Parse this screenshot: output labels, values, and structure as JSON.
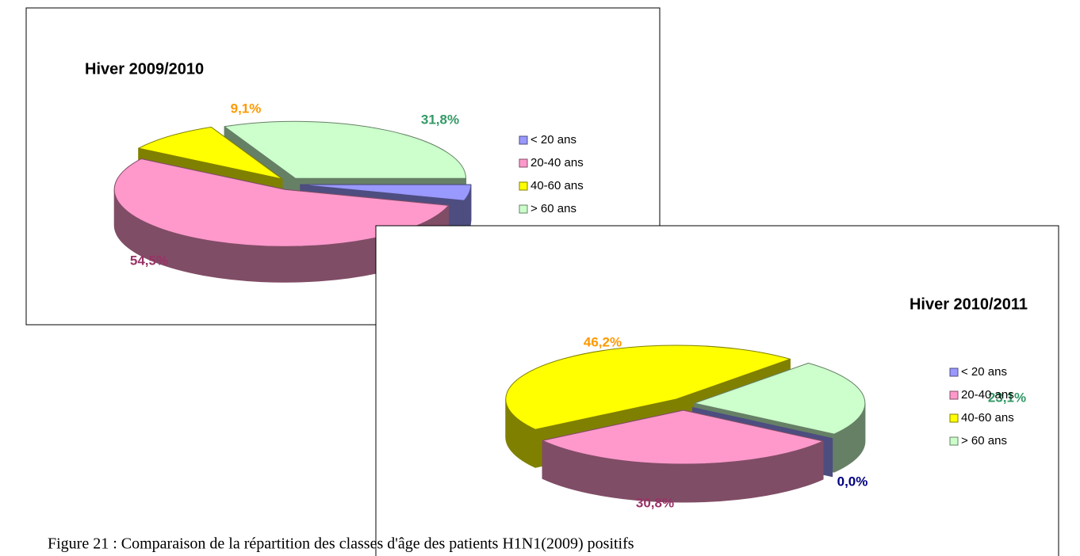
{
  "chart_data": [
    {
      "type": "pie",
      "title": "Hiver 2009/2010",
      "categories": [
        "< 20 ans",
        "20-40 ans",
        "40-60 ans",
        "> 60 ans"
      ],
      "values": [
        4.5,
        54.5,
        9.1,
        31.8
      ],
      "value_labels": [
        null,
        "54,5%",
        "9,1%",
        "31,8%"
      ],
      "colors": [
        "#9999ff",
        "#ff99cc",
        "#ffff00",
        "#ccffcc"
      ],
      "label_colors": [
        "#000080",
        "#993366",
        "#ff9900",
        "#339966"
      ]
    },
    {
      "type": "pie",
      "title": "Hiver 2010/2011",
      "categories": [
        "< 20 ans",
        "20-40 ans",
        "40-60 ans",
        "> 60 ans"
      ],
      "values": [
        0,
        30.8,
        46.2,
        23.1
      ],
      "value_labels": [
        "0,0%",
        "30,8%",
        "46,2%",
        "23,1%"
      ],
      "colors": [
        "#9999ff",
        "#ff99cc",
        "#ffff00",
        "#ccffcc"
      ],
      "label_colors": [
        "#000080",
        "#993366",
        "#ff9900",
        "#339966"
      ]
    }
  ],
  "caption": "Figure 21 : Comparaison de la répartition des classes d'âge des patients H1N1(2009) positifs"
}
